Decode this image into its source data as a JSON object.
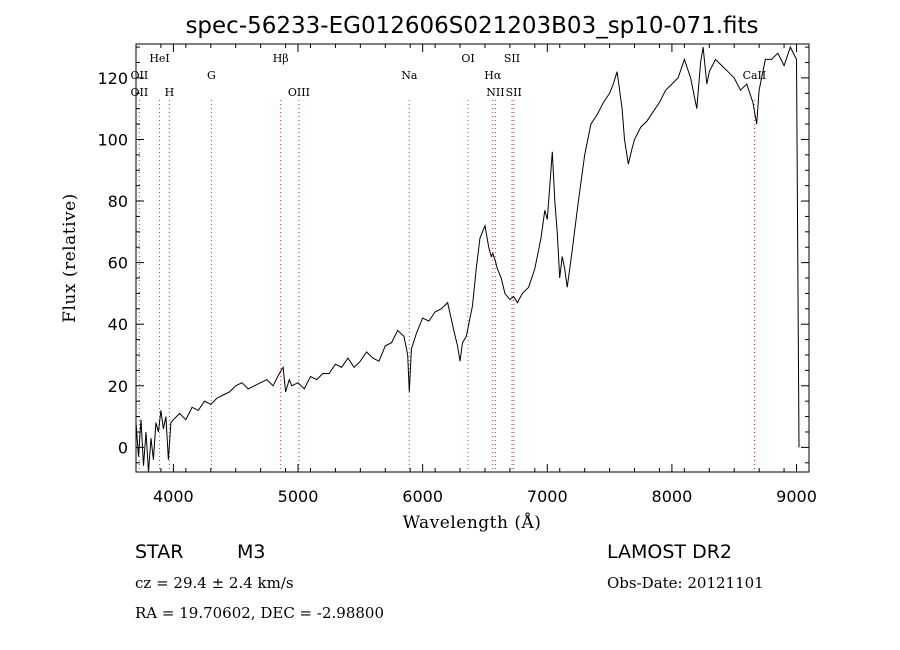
{
  "chart_data": {
    "type": "line",
    "title": "spec-56233-EG012606S021203B03_sp10-071.fits",
    "xlabel": "Wavelength (Å)",
    "ylabel": "Flux (relative)",
    "xlim": [
      3700,
      9100
    ],
    "ylim": [
      -8,
      131
    ],
    "x_ticks": [
      4000,
      5000,
      6000,
      7000,
      8000,
      9000
    ],
    "y_ticks": [
      0,
      20,
      40,
      60,
      80,
      100,
      120
    ],
    "grid": false,
    "legend": "none",
    "line_color": "#000000",
    "marker_color": "#cc3333",
    "spectral_lines": [
      {
        "label": "OII",
        "x": 3727,
        "row": "top2"
      },
      {
        "label": "OII",
        "x": 3727,
        "row": "mid2"
      },
      {
        "label": "HeI",
        "x": 3889,
        "row": "top1"
      },
      {
        "label": "H",
        "x": 3968,
        "row": "mid2"
      },
      {
        "label": "G",
        "x": 4305,
        "row": "top2"
      },
      {
        "label": "Hβ",
        "x": 4861,
        "row": "top1"
      },
      {
        "label": "OIII",
        "x": 5007,
        "row": "mid2"
      },
      {
        "label": "Na",
        "x": 5893,
        "row": "top2"
      },
      {
        "label": "OI",
        "x": 6364,
        "row": "top1"
      },
      {
        "label": "Hα",
        "x": 6563,
        "row": "top2"
      },
      {
        "label": "NII",
        "x": 6584,
        "row": "mid2"
      },
      {
        "label": "SII",
        "x": 6717,
        "row": "top1"
      },
      {
        "label": "SII",
        "x": 6731,
        "row": "mid2"
      },
      {
        "label": "CaII",
        "x": 8662,
        "row": "top2"
      }
    ],
    "series": [
      {
        "x": [
          3700,
          3720,
          3740,
          3760,
          3780,
          3800,
          3820,
          3840,
          3860,
          3880,
          3900,
          3920,
          3940,
          3960,
          3980,
          4000,
          4050,
          4100,
          4150,
          4200,
          4250,
          4300,
          4350,
          4400,
          4450,
          4500,
          4550,
          4600,
          4650,
          4700,
          4750,
          4800,
          4850,
          4880,
          4900,
          4930,
          4950,
          5000,
          5050,
          5100,
          5150,
          5200,
          5250,
          5300,
          5350,
          5400,
          5450,
          5500,
          5550,
          5600,
          5650,
          5700,
          5750,
          5800,
          5850,
          5880,
          5893,
          5910,
          5950,
          6000,
          6050,
          6100,
          6150,
          6200,
          6250,
          6280,
          6300,
          6320,
          6350,
          6400,
          6430,
          6460,
          6500,
          6530,
          6550,
          6563,
          6580,
          6600,
          6630,
          6660,
          6700,
          6730,
          6760,
          6800,
          6850,
          6900,
          6950,
          6980,
          7000,
          7020,
          7040,
          7060,
          7080,
          7100,
          7120,
          7140,
          7160,
          7200,
          7250,
          7300,
          7350,
          7400,
          7450,
          7500,
          7530,
          7560,
          7600,
          7620,
          7650,
          7680,
          7700,
          7750,
          7800,
          7850,
          7900,
          7950,
          8000,
          8050,
          8100,
          8150,
          8200,
          8230,
          8250,
          8280,
          8300,
          8350,
          8400,
          8450,
          8500,
          8550,
          8600,
          8650,
          8680,
          8700,
          8750,
          8800,
          8850,
          8900,
          8950,
          9000,
          9020
        ],
        "y": [
          8,
          -3,
          9,
          -6,
          5,
          -8,
          3,
          -4,
          8,
          5,
          12,
          6,
          10,
          -4,
          8,
          9,
          11,
          9,
          13,
          12,
          15,
          14,
          16,
          17,
          18,
          20,
          21,
          19,
          20,
          21,
          22,
          20,
          24,
          26,
          18,
          22,
          20,
          21,
          19,
          23,
          22,
          24,
          24,
          27,
          26,
          29,
          26,
          28,
          31,
          29,
          28,
          33,
          34,
          38,
          36,
          30,
          18,
          32,
          37,
          42,
          41,
          44,
          45,
          47,
          38,
          33,
          28,
          34,
          36,
          46,
          58,
          68,
          72,
          65,
          62,
          63,
          61,
          58,
          55,
          50,
          48,
          49,
          47,
          50,
          52,
          58,
          68,
          77,
          74,
          85,
          96,
          80,
          70,
          55,
          62,
          58,
          52,
          64,
          80,
          95,
          105,
          108,
          112,
          115,
          118,
          122,
          110,
          100,
          92,
          97,
          100,
          104,
          106,
          109,
          112,
          116,
          118,
          120,
          126,
          120,
          110,
          125,
          130,
          118,
          122,
          126,
          124,
          122,
          120,
          116,
          118,
          112,
          105,
          116,
          126,
          126,
          128,
          124,
          130,
          126,
          0
        ]
      }
    ]
  },
  "footer": {
    "object_type": "STAR",
    "subclass": "M3",
    "survey": "LAMOST DR2",
    "cz": "cz = 29.4 ± 2.4 km/s",
    "obs_date": "Obs-Date: 20121101",
    "coords": "RA =  19.70602, DEC =  -2.98800"
  }
}
